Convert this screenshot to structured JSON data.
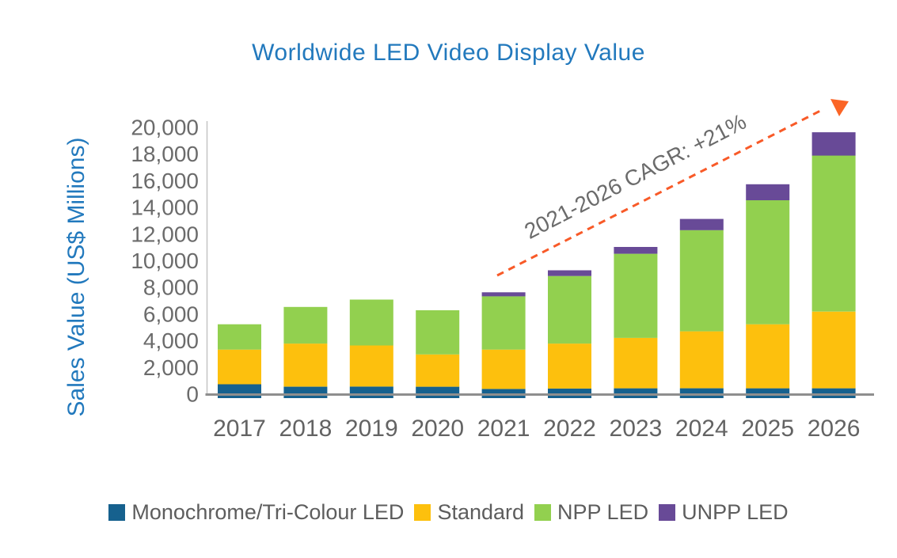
{
  "title": {
    "text": "Worldwide LED Video Display Value",
    "color": "#2279bd"
  },
  "chart_data": {
    "type": "bar",
    "stacked": true,
    "title": "Worldwide LED Video Display Value",
    "xlabel": "",
    "ylabel": "Sales Value (US$ Millions)",
    "ylim": [
      0,
      20000
    ],
    "ytick_step": 2000,
    "grid": false,
    "legend_position": "bottom",
    "categories": [
      "2017",
      "2018",
      "2019",
      "2020",
      "2021",
      "2022",
      "2023",
      "2024",
      "2025",
      "2026"
    ],
    "series": [
      {
        "name": "Monochrome/Tri-Colour LED",
        "color": "#16618e",
        "values": [
          800,
          620,
          630,
          620,
          450,
          480,
          500,
          500,
          500,
          500
        ]
      },
      {
        "name": "Standard",
        "color": "#fdc00d",
        "values": [
          2600,
          3230,
          3080,
          2420,
          2950,
          3370,
          3780,
          4270,
          4800,
          5750
        ]
      },
      {
        "name": "NPP LED",
        "color": "#92d04f",
        "values": [
          1900,
          2750,
          3440,
          3310,
          4000,
          5070,
          6310,
          7590,
          9300,
          11700
        ]
      },
      {
        "name": "UNPP LED",
        "color": "#684a97",
        "values": [
          0,
          0,
          0,
          0,
          300,
          430,
          510,
          840,
          1200,
          1750
        ]
      }
    ],
    "annotation": {
      "text": "2021-2026 CAGR: +21%",
      "line_color": "#f85a28",
      "arrowhead_color": "#fb6526",
      "text_color": "#6b6b6b"
    },
    "axis": {
      "tick_color": "#6b6b6b",
      "x_axis_line_color": "#8e8e8e",
      "y_axis_line_color": "#c4c4c4"
    }
  }
}
